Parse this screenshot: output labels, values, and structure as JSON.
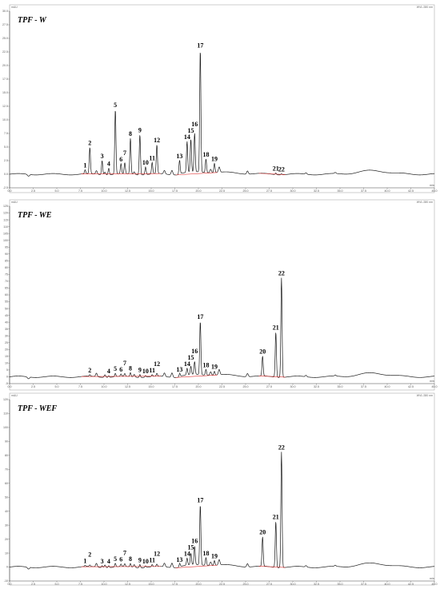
{
  "chart_data": [
    {
      "type": "line",
      "title": "TPF - W",
      "xlim": [
        0,
        45
      ],
      "xticks": [
        "0.0",
        "2.5",
        "5.0",
        "7.5",
        "10.0",
        "12.5",
        "15.0",
        "17.5",
        "20.0",
        "22.5",
        "25.0",
        "27.5",
        "30.0",
        "32.5",
        "35.0",
        "37.5",
        "40.0",
        "42.5",
        "45.0"
      ],
      "ylim": [
        -2.5,
        30
      ],
      "yticks": [
        "-2.5",
        "0.0",
        "2.5",
        "5.0",
        "7.5",
        "10.0",
        "12.5",
        "15.0",
        "17.5",
        "20.0",
        "22.5",
        "25.0",
        "27.5",
        "30.0"
      ],
      "corner_left": "mAU",
      "corner_right": "WVL:280 nm",
      "x_unit": "min",
      "peaks": [
        {
          "label": "1",
          "x": 8.0,
          "y": 0.7
        },
        {
          "label": "2",
          "x": 8.5,
          "y": 4.8
        },
        {
          "label": "3",
          "x": 9.8,
          "y": 2.6
        },
        {
          "label": "4",
          "x": 10.5,
          "y": 1.2
        },
        {
          "label": "5",
          "x": 11.2,
          "y": 11.9
        },
        {
          "label": "6",
          "x": 11.8,
          "y": 1.8
        },
        {
          "label": "7",
          "x": 12.2,
          "y": 2.0
        },
        {
          "label": "8",
          "x": 12.8,
          "y": 6.6
        },
        {
          "label": "9",
          "x": 13.8,
          "y": 7.4
        },
        {
          "label": "10",
          "x": 14.4,
          "y": 1.4
        },
        {
          "label": "11",
          "x": 15.1,
          "y": 2.1
        },
        {
          "label": "12",
          "x": 15.6,
          "y": 5.3
        },
        {
          "label": "13",
          "x": 18.0,
          "y": 2.6
        },
        {
          "label": "14",
          "x": 18.8,
          "y": 5.7
        },
        {
          "label": "15",
          "x": 19.2,
          "y": 6.0
        },
        {
          "label": "16",
          "x": 19.6,
          "y": 7.1
        },
        {
          "label": "17",
          "x": 20.2,
          "y": 22.5
        },
        {
          "label": "18",
          "x": 20.8,
          "y": 2.5
        },
        {
          "label": "19",
          "x": 21.7,
          "y": 1.7
        },
        {
          "label": "21",
          "x": 28.2,
          "y": 0.3
        },
        {
          "label": "22",
          "x": 28.8,
          "y": 0.2
        }
      ]
    },
    {
      "type": "line",
      "title": "TPF - WE",
      "xlim": [
        0,
        45
      ],
      "xticks": [
        "0.0",
        "2.5",
        "5.0",
        "7.5",
        "10.0",
        "12.5",
        "15.0",
        "17.5",
        "20.0",
        "22.5",
        "25.0",
        "27.5",
        "30.0",
        "32.5",
        "35.0",
        "37.5",
        "40.0",
        "42.5",
        "45.0"
      ],
      "ylim": [
        -5,
        125
      ],
      "yticks": [
        "-5",
        "0",
        "5",
        "10",
        "15",
        "20",
        "25",
        "30",
        "35",
        "40",
        "45",
        "50",
        "55",
        "60",
        "65",
        "70",
        "75",
        "80",
        "85",
        "90",
        "95",
        "100",
        "105",
        "110",
        "115",
        "120",
        "125"
      ],
      "corner_left": "mAU",
      "corner_right": "WVL:280 nm",
      "x_unit": "min",
      "peaks": [
        {
          "label": "2",
          "x": 8.5,
          "y": 1.0
        },
        {
          "label": "4",
          "x": 10.5,
          "y": 1.2
        },
        {
          "label": "5",
          "x": 11.2,
          "y": 2.4
        },
        {
          "label": "6",
          "x": 11.8,
          "y": 1.6
        },
        {
          "label": "7",
          "x": 12.2,
          "y": 1.9
        },
        {
          "label": "8",
          "x": 12.8,
          "y": 2.9
        },
        {
          "label": "9",
          "x": 13.8,
          "y": 2.2
        },
        {
          "label": "10",
          "x": 14.4,
          "y": 1.2
        },
        {
          "label": "11",
          "x": 15.1,
          "y": 1.3
        },
        {
          "label": "12",
          "x": 15.6,
          "y": 2.0
        },
        {
          "label": "13",
          "x": 18.0,
          "y": 2.4
        },
        {
          "label": "14",
          "x": 18.8,
          "y": 4.8
        },
        {
          "label": "15",
          "x": 19.2,
          "y": 6.0
        },
        {
          "label": "16",
          "x": 19.6,
          "y": 9.3
        },
        {
          "label": "17",
          "x": 20.2,
          "y": 39.0
        },
        {
          "label": "18",
          "x": 20.8,
          "y": 4.2
        },
        {
          "label": "19",
          "x": 21.7,
          "y": 2.9
        },
        {
          "label": "20",
          "x": 26.8,
          "y": 14.5
        },
        {
          "label": "21",
          "x": 28.2,
          "y": 33.0
        },
        {
          "label": "22",
          "x": 28.8,
          "y": 73.0
        }
      ]
    },
    {
      "type": "line",
      "title": "TPF - WEF",
      "xlim": [
        0,
        45
      ],
      "xticks": [
        "0.0",
        "2.5",
        "5.0",
        "7.5",
        "10.0",
        "12.5",
        "15.0",
        "17.5",
        "20.0",
        "22.5",
        "25.0",
        "27.5",
        "30.0",
        "32.5",
        "35.0",
        "37.5",
        "40.0",
        "42.5",
        "45.0"
      ],
      "ylim": [
        -10,
        120
      ],
      "yticks": [
        "-10",
        "0",
        "10",
        "20",
        "30",
        "40",
        "50",
        "60",
        "70",
        "80",
        "90",
        "100",
        "110",
        "120"
      ],
      "corner_left": "mAU",
      "corner_right": "WVL:280 nm",
      "x_unit": "min",
      "peaks": [
        {
          "label": "1",
          "x": 8.0,
          "y": 0.8
        },
        {
          "label": "2",
          "x": 8.5,
          "y": 1.0
        },
        {
          "label": "3",
          "x": 9.8,
          "y": 1.4
        },
        {
          "label": "4",
          "x": 10.5,
          "y": 1.4
        },
        {
          "label": "5",
          "x": 11.2,
          "y": 2.6
        },
        {
          "label": "6",
          "x": 11.8,
          "y": 1.7
        },
        {
          "label": "7",
          "x": 12.2,
          "y": 1.9
        },
        {
          "label": "8",
          "x": 12.8,
          "y": 2.4
        },
        {
          "label": "9",
          "x": 13.8,
          "y": 2.3
        },
        {
          "label": "10",
          "x": 14.4,
          "y": 1.2
        },
        {
          "label": "11",
          "x": 15.1,
          "y": 1.5
        },
        {
          "label": "12",
          "x": 15.6,
          "y": 1.6
        },
        {
          "label": "13",
          "x": 18.0,
          "y": 2.5
        },
        {
          "label": "14",
          "x": 18.8,
          "y": 5.0
        },
        {
          "label": "15",
          "x": 19.2,
          "y": 8.0
        },
        {
          "label": "16",
          "x": 19.6,
          "y": 13.0
        },
        {
          "label": "17",
          "x": 20.2,
          "y": 43.0
        },
        {
          "label": "18",
          "x": 20.8,
          "y": 5.5
        },
        {
          "label": "19",
          "x": 21.7,
          "y": 3.5
        },
        {
          "label": "20",
          "x": 26.8,
          "y": 21.0
        },
        {
          "label": "21",
          "x": 28.2,
          "y": 33.0
        },
        {
          "label": "22",
          "x": 28.8,
          "y": 83.0
        }
      ]
    }
  ]
}
